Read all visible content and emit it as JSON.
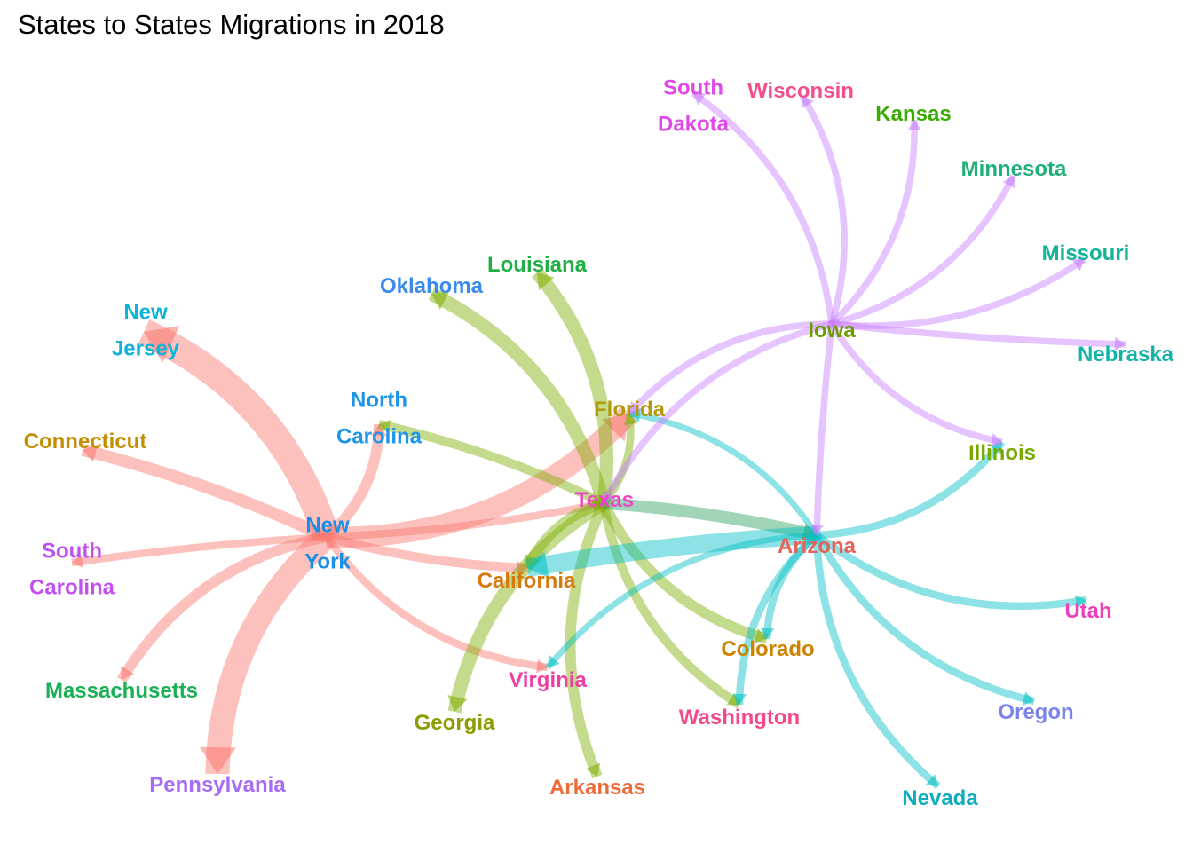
{
  "title": "States to States Migrations in 2018",
  "colors": {
    "new_york": "#f8766d",
    "texas": "#7cae00",
    "arizona": "#00bfc4",
    "iowa": "#c77cff",
    "texas_arizona": "#2ca25f"
  },
  "nodes": [
    {
      "id": "south_dakota",
      "lines": [
        "South",
        "Dakota"
      ],
      "color": "#e048e8"
    },
    {
      "id": "wisconsin",
      "lines": [
        "Wisconsin"
      ],
      "color": "#f24f8c"
    },
    {
      "id": "kansas",
      "lines": [
        "Kansas"
      ],
      "color": "#3aac00"
    },
    {
      "id": "minnesota",
      "lines": [
        "Minnesota"
      ],
      "color": "#1fb07a"
    },
    {
      "id": "missouri",
      "lines": [
        "Missouri"
      ],
      "color": "#14b49a"
    },
    {
      "id": "nebraska",
      "lines": [
        "Nebraska"
      ],
      "color": "#10b3a8"
    },
    {
      "id": "iowa",
      "lines": [
        "Iowa"
      ],
      "color": "#6a9c00"
    },
    {
      "id": "illinois",
      "lines": [
        "Illinois"
      ],
      "color": "#79a800"
    },
    {
      "id": "louisiana",
      "lines": [
        "Louisiana"
      ],
      "color": "#1fb045"
    },
    {
      "id": "oklahoma",
      "lines": [
        "Oklahoma"
      ],
      "color": "#3b8bef"
    },
    {
      "id": "new_jersey",
      "lines": [
        "New",
        "Jersey"
      ],
      "color": "#0fb2d8"
    },
    {
      "id": "north_carolina",
      "lines": [
        "North",
        "Carolina"
      ],
      "color": "#1c96e8"
    },
    {
      "id": "florida",
      "lines": [
        "Florida"
      ],
      "color": "#b49a0a"
    },
    {
      "id": "connecticut",
      "lines": [
        "Connecticut"
      ],
      "color": "#c48e00"
    },
    {
      "id": "texas",
      "lines": [
        "Texas"
      ],
      "color": "#ee45c8"
    },
    {
      "id": "new_york",
      "lines": [
        "New",
        "York"
      ],
      "color": "#1a8fe6"
    },
    {
      "id": "arizona",
      "lines": [
        "Arizona"
      ],
      "color": "#e8615a"
    },
    {
      "id": "south_carolina",
      "lines": [
        "South",
        "Carolina"
      ],
      "color": "#c24ff0"
    },
    {
      "id": "california",
      "lines": [
        "California"
      ],
      "color": "#d9790c"
    },
    {
      "id": "utah",
      "lines": [
        "Utah"
      ],
      "color": "#ee3fb8"
    },
    {
      "id": "colorado",
      "lines": [
        "Colorado"
      ],
      "color": "#cf8200"
    },
    {
      "id": "massachusetts",
      "lines": [
        "Massachusetts"
      ],
      "color": "#1ab055"
    },
    {
      "id": "virginia",
      "lines": [
        "Virginia"
      ],
      "color": "#f03fa3"
    },
    {
      "id": "washington",
      "lines": [
        "Washington"
      ],
      "color": "#f5488b"
    },
    {
      "id": "oregon",
      "lines": [
        "Oregon"
      ],
      "color": "#7b84ee"
    },
    {
      "id": "georgia",
      "lines": [
        "Georgia"
      ],
      "color": "#8d9c00"
    },
    {
      "id": "pennsylvania",
      "lines": [
        "Pennsylvania"
      ],
      "color": "#a76cf5"
    },
    {
      "id": "arkansas",
      "lines": [
        "Arkansas"
      ],
      "color": "#ee6b3a"
    },
    {
      "id": "nevada",
      "lines": [
        "Nevada"
      ],
      "color": "#10aebd"
    }
  ],
  "edges": [
    {
      "from": "new_york",
      "to": "new_jersey",
      "weight": 9
    },
    {
      "from": "new_york",
      "to": "pennsylvania",
      "weight": 8
    },
    {
      "from": "new_york",
      "to": "florida",
      "weight": 7
    },
    {
      "from": "new_york",
      "to": "connecticut",
      "weight": 4
    },
    {
      "from": "new_york",
      "to": "north_carolina",
      "weight": 3.5
    },
    {
      "from": "new_york",
      "to": "massachusetts",
      "weight": 3.5
    },
    {
      "from": "new_york",
      "to": "california",
      "weight": 3
    },
    {
      "from": "new_york",
      "to": "south_carolina",
      "weight": 2.5
    },
    {
      "from": "new_york",
      "to": "texas",
      "weight": 2.5
    },
    {
      "from": "new_york",
      "to": "virginia",
      "weight": 2.5
    },
    {
      "from": "texas",
      "to": "oklahoma",
      "weight": 4.5
    },
    {
      "from": "texas",
      "to": "louisiana",
      "weight": 4.5
    },
    {
      "from": "texas",
      "to": "colorado",
      "weight": 3.5
    },
    {
      "from": "texas",
      "to": "georgia",
      "weight": 4.5
    },
    {
      "from": "texas",
      "to": "arkansas",
      "weight": 3.5
    },
    {
      "from": "texas",
      "to": "washington",
      "weight": 3
    },
    {
      "from": "texas",
      "to": "california",
      "weight": 3.5
    },
    {
      "from": "texas",
      "to": "north_carolina",
      "weight": 3
    },
    {
      "from": "texas",
      "to": "florida",
      "weight": 2.5
    },
    {
      "from": "texas",
      "to": "arizona",
      "weight": 4
    },
    {
      "from": "arizona",
      "to": "california",
      "weight": 6
    },
    {
      "from": "arizona",
      "to": "colorado",
      "weight": 2.5
    },
    {
      "from": "arizona",
      "to": "washington",
      "weight": 2.5
    },
    {
      "from": "arizona",
      "to": "oregon",
      "weight": 2.5
    },
    {
      "from": "arizona",
      "to": "nevada",
      "weight": 2.5
    },
    {
      "from": "arizona",
      "to": "utah",
      "weight": 2.5
    },
    {
      "from": "arizona",
      "to": "illinois",
      "weight": 2.5
    },
    {
      "from": "arizona",
      "to": "virginia",
      "weight": 2
    },
    {
      "from": "arizona",
      "to": "florida",
      "weight": 2
    },
    {
      "from": "iowa",
      "to": "south_dakota",
      "weight": 2.2
    },
    {
      "from": "iowa",
      "to": "wisconsin",
      "weight": 2.2
    },
    {
      "from": "iowa",
      "to": "kansas",
      "weight": 2.2
    },
    {
      "from": "iowa",
      "to": "minnesota",
      "weight": 2.2
    },
    {
      "from": "iowa",
      "to": "missouri",
      "weight": 2.2
    },
    {
      "from": "iowa",
      "to": "nebraska",
      "weight": 2.2
    },
    {
      "from": "iowa",
      "to": "illinois",
      "weight": 2.2
    },
    {
      "from": "iowa",
      "to": "florida",
      "weight": 2.2
    },
    {
      "from": "iowa",
      "to": "texas",
      "weight": 2.2
    },
    {
      "from": "iowa",
      "to": "arizona",
      "weight": 2.2
    }
  ]
}
